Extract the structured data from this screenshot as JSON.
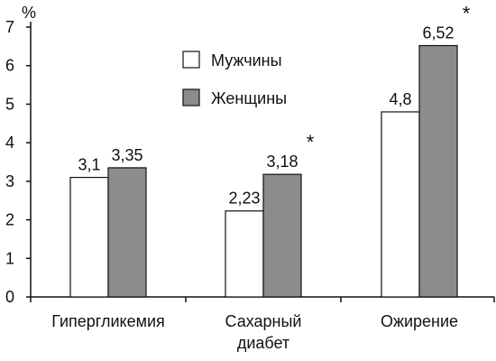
{
  "chart_data": {
    "type": "bar",
    "unit_label": "%",
    "categories": [
      {
        "lines": [
          "Гипергликемия"
        ]
      },
      {
        "lines": [
          "Сахарный",
          "диабет"
        ]
      },
      {
        "lines": [
          "Ожирение"
        ]
      }
    ],
    "series": [
      {
        "name": "Мужчины",
        "color": "#ffffff",
        "values": [
          3.1,
          2.23,
          4.8
        ],
        "labels": [
          "3,1",
          "2,23",
          "4,8"
        ]
      },
      {
        "name": "Женщины",
        "color": "#8c8c8c",
        "values": [
          3.35,
          3.18,
          6.52
        ],
        "labels": [
          "3,35",
          "3,18",
          "6,52"
        ]
      }
    ],
    "significance_marks": [
      {
        "category_index": 1,
        "symbol": "*"
      },
      {
        "category_index": 2,
        "symbol": "*"
      }
    ],
    "ylim": [
      0,
      7
    ],
    "yticks": [
      0,
      1,
      2,
      3,
      4,
      5,
      6,
      7
    ],
    "ytick_labels": [
      "0",
      "1",
      "2",
      "3",
      "4",
      "5",
      "6",
      "7"
    ],
    "legend_position": "top-center",
    "grid": false
  }
}
